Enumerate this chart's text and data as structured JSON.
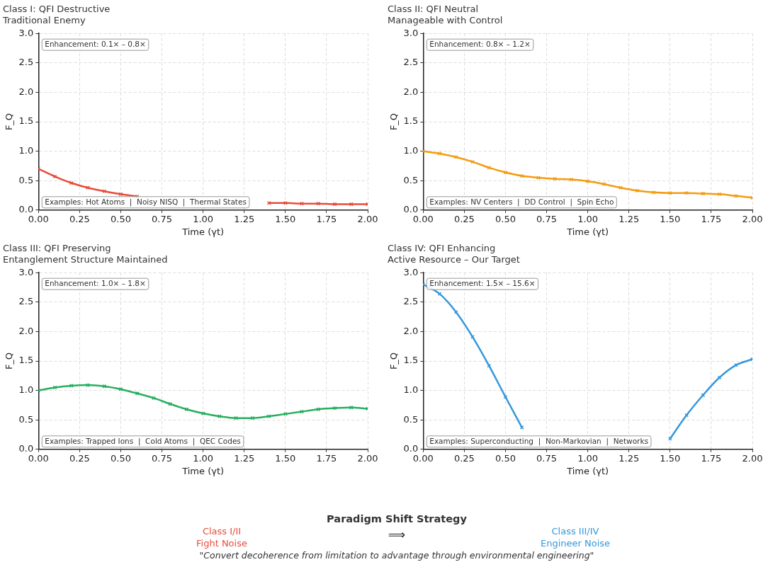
{
  "chart_data": [
    {
      "type": "line",
      "title": "Class I: QFI Destructive",
      "subtitle": "Traditional Enemy",
      "xlabel": "Time (γt)",
      "ylabel": "F_Q",
      "x": [
        0,
        0.1,
        0.2,
        0.3,
        0.4,
        0.5,
        0.6,
        0.7,
        0.8,
        0.9,
        1.0,
        1.1,
        1.2,
        1.3,
        1.4,
        1.5,
        1.6,
        1.7,
        1.8,
        1.9,
        2.0
      ],
      "series": [
        {
          "color": "#e74c3c",
          "values": [
            0.7,
            0.57,
            0.46,
            0.38,
            0.32,
            0.27,
            0.23,
            null,
            null,
            null,
            null,
            null,
            null,
            null,
            0.12,
            0.12,
            0.11,
            0.11,
            0.1,
            0.1,
            0.1
          ]
        }
      ],
      "xlim": [
        0,
        2
      ],
      "ylim": [
        0,
        3
      ],
      "xticks": [
        {
          "value": 0,
          "label": "0.00"
        },
        {
          "value": 0.25,
          "label": "0.25"
        },
        {
          "value": 0.5,
          "label": "0.50"
        },
        {
          "value": 0.75,
          "label": "0.75"
        },
        {
          "value": 1,
          "label": "1.00"
        },
        {
          "value": 1.25,
          "label": "1.25"
        },
        {
          "value": 1.5,
          "label": "1.50"
        },
        {
          "value": 1.75,
          "label": "1.75"
        },
        {
          "value": 2,
          "label": "2.00"
        }
      ],
      "yticks": [
        {
          "value": 0,
          "label": "0.0"
        },
        {
          "value": 0.5,
          "label": "0.5"
        },
        {
          "value": 1,
          "label": "1.0"
        },
        {
          "value": 1.5,
          "label": "1.5"
        },
        {
          "value": 2,
          "label": "2.0"
        },
        {
          "value": 2.5,
          "label": "2.5"
        },
        {
          "value": 3,
          "label": "3.0"
        }
      ],
      "grid": true,
      "marker": "cross",
      "line_style": "solid",
      "annotations": [
        "Enhancement: 0.1× – 0.8×",
        "Examples: Hot Atoms  |  Noisy NISQ  |  Thermal States"
      ]
    },
    {
      "type": "line",
      "title": "Class II: QFI Neutral",
      "subtitle": "Manageable with Control",
      "xlabel": "Time (γt)",
      "ylabel": "F_Q",
      "x": [
        0,
        0.1,
        0.2,
        0.3,
        0.4,
        0.5,
        0.6,
        0.7,
        0.8,
        0.9,
        1.0,
        1.1,
        1.2,
        1.3,
        1.4,
        1.5,
        1.6,
        1.7,
        1.8,
        1.9,
        2.0
      ],
      "series": [
        {
          "color": "#f39c12",
          "values": [
            1.0,
            0.96,
            0.9,
            0.82,
            0.72,
            0.64,
            0.58,
            0.55,
            0.53,
            0.52,
            0.49,
            0.44,
            0.38,
            0.33,
            0.3,
            0.29,
            0.29,
            0.28,
            0.27,
            0.24,
            0.21
          ]
        }
      ],
      "xlim": [
        0,
        2
      ],
      "ylim": [
        0,
        3
      ],
      "xticks": [
        {
          "value": 0,
          "label": "0.00"
        },
        {
          "value": 0.25,
          "label": "0.25"
        },
        {
          "value": 0.5,
          "label": "0.50"
        },
        {
          "value": 0.75,
          "label": "0.75"
        },
        {
          "value": 1,
          "label": "1.00"
        },
        {
          "value": 1.25,
          "label": "1.25"
        },
        {
          "value": 1.5,
          "label": "1.50"
        },
        {
          "value": 1.75,
          "label": "1.75"
        },
        {
          "value": 2,
          "label": "2.00"
        }
      ],
      "yticks": [
        {
          "value": 0,
          "label": "0.0"
        },
        {
          "value": 0.5,
          "label": "0.5"
        },
        {
          "value": 1,
          "label": "1.0"
        },
        {
          "value": 1.5,
          "label": "1.5"
        },
        {
          "value": 2,
          "label": "2.0"
        },
        {
          "value": 2.5,
          "label": "2.5"
        },
        {
          "value": 3,
          "label": "3.0"
        }
      ],
      "grid": true,
      "marker": "cross",
      "line_style": "solid",
      "annotations": [
        "Enhancement: 0.8× – 1.2×",
        "Examples: NV Centers  |  DD Control  |  Spin Echo"
      ]
    },
    {
      "type": "line",
      "title": "Class III: QFI Preserving",
      "subtitle": "Entanglement Structure Maintained",
      "xlabel": "Time (γt)",
      "ylabel": "F_Q",
      "x": [
        0,
        0.1,
        0.2,
        0.3,
        0.4,
        0.5,
        0.6,
        0.7,
        0.8,
        0.9,
        1.0,
        1.1,
        1.2,
        1.3,
        1.4,
        1.5,
        1.6,
        1.7,
        1.8,
        1.9,
        2.0
      ],
      "series": [
        {
          "color": "#27ae60",
          "values": [
            1.0,
            1.05,
            1.08,
            1.09,
            1.07,
            1.02,
            0.95,
            0.87,
            0.77,
            0.68,
            0.61,
            0.56,
            0.53,
            0.53,
            0.56,
            0.6,
            0.64,
            0.68,
            0.7,
            0.71,
            0.69
          ]
        }
      ],
      "xlim": [
        0,
        2
      ],
      "ylim": [
        0,
        3
      ],
      "xticks": [
        {
          "value": 0,
          "label": "0.00"
        },
        {
          "value": 0.25,
          "label": "0.25"
        },
        {
          "value": 0.5,
          "label": "0.50"
        },
        {
          "value": 0.75,
          "label": "0.75"
        },
        {
          "value": 1,
          "label": "1.00"
        },
        {
          "value": 1.25,
          "label": "1.25"
        },
        {
          "value": 1.5,
          "label": "1.50"
        },
        {
          "value": 1.75,
          "label": "1.75"
        },
        {
          "value": 2,
          "label": "2.00"
        }
      ],
      "yticks": [
        {
          "value": 0,
          "label": "0.0"
        },
        {
          "value": 0.5,
          "label": "0.5"
        },
        {
          "value": 1,
          "label": "1.0"
        },
        {
          "value": 1.5,
          "label": "1.5"
        },
        {
          "value": 2,
          "label": "2.0"
        },
        {
          "value": 2.5,
          "label": "2.5"
        },
        {
          "value": 3,
          "label": "3.0"
        }
      ],
      "grid": true,
      "marker": "cross",
      "line_style": "solid",
      "annotations": [
        "Enhancement: 1.0× – 1.8×",
        "Examples: Trapped Ions  |  Cold Atoms  |  QEC Codes"
      ]
    },
    {
      "type": "line",
      "title": "Class IV: QFI Enhancing",
      "subtitle": "Active Resource – Our Target",
      "xlabel": "Time (γt)",
      "ylabel": "F_Q",
      "x": [
        0,
        0.1,
        0.2,
        0.3,
        0.4,
        0.5,
        0.6,
        0.7,
        0.8,
        0.9,
        1.0,
        1.1,
        1.2,
        1.3,
        1.4,
        1.5,
        1.6,
        1.7,
        1.8,
        1.9,
        2.0
      ],
      "series": [
        {
          "color": "#3498db",
          "values": [
            2.8,
            2.64,
            2.33,
            1.91,
            1.42,
            0.89,
            0.37,
            null,
            null,
            null,
            null,
            null,
            null,
            null,
            null,
            0.18,
            0.58,
            0.92,
            1.22,
            1.43,
            1.53
          ]
        }
      ],
      "xlim": [
        0,
        2
      ],
      "ylim": [
        0,
        3
      ],
      "xticks": [
        {
          "value": 0,
          "label": "0.00"
        },
        {
          "value": 0.25,
          "label": "0.25"
        },
        {
          "value": 0.5,
          "label": "0.50"
        },
        {
          "value": 0.75,
          "label": "0.75"
        },
        {
          "value": 1,
          "label": "1.00"
        },
        {
          "value": 1.25,
          "label": "1.25"
        },
        {
          "value": 1.5,
          "label": "1.50"
        },
        {
          "value": 1.75,
          "label": "1.75"
        },
        {
          "value": 2,
          "label": "2.00"
        }
      ],
      "yticks": [
        {
          "value": 0,
          "label": "0.0"
        },
        {
          "value": 0.5,
          "label": "0.5"
        },
        {
          "value": 1,
          "label": "1.0"
        },
        {
          "value": 1.5,
          "label": "1.5"
        },
        {
          "value": 2,
          "label": "2.0"
        },
        {
          "value": 2.5,
          "label": "2.5"
        },
        {
          "value": 3,
          "label": "3.0"
        }
      ],
      "grid": true,
      "marker": "cross",
      "line_style": "solid",
      "annotations": [
        "Enhancement: 1.5× – 15.6×",
        "Examples: Superconducting  |  Non-Markovian  |  Networks"
      ]
    },
    {
      "type": "other",
      "title": "Paradigm Shift Strategy",
      "annotations": [
        "Class I/II\nFight Noise",
        "⟹",
        "Class III/IV\nEngineer Noise",
        "\"Convert decoherence from limitation to advantage through environmental engineering\""
      ]
    }
  ]
}
